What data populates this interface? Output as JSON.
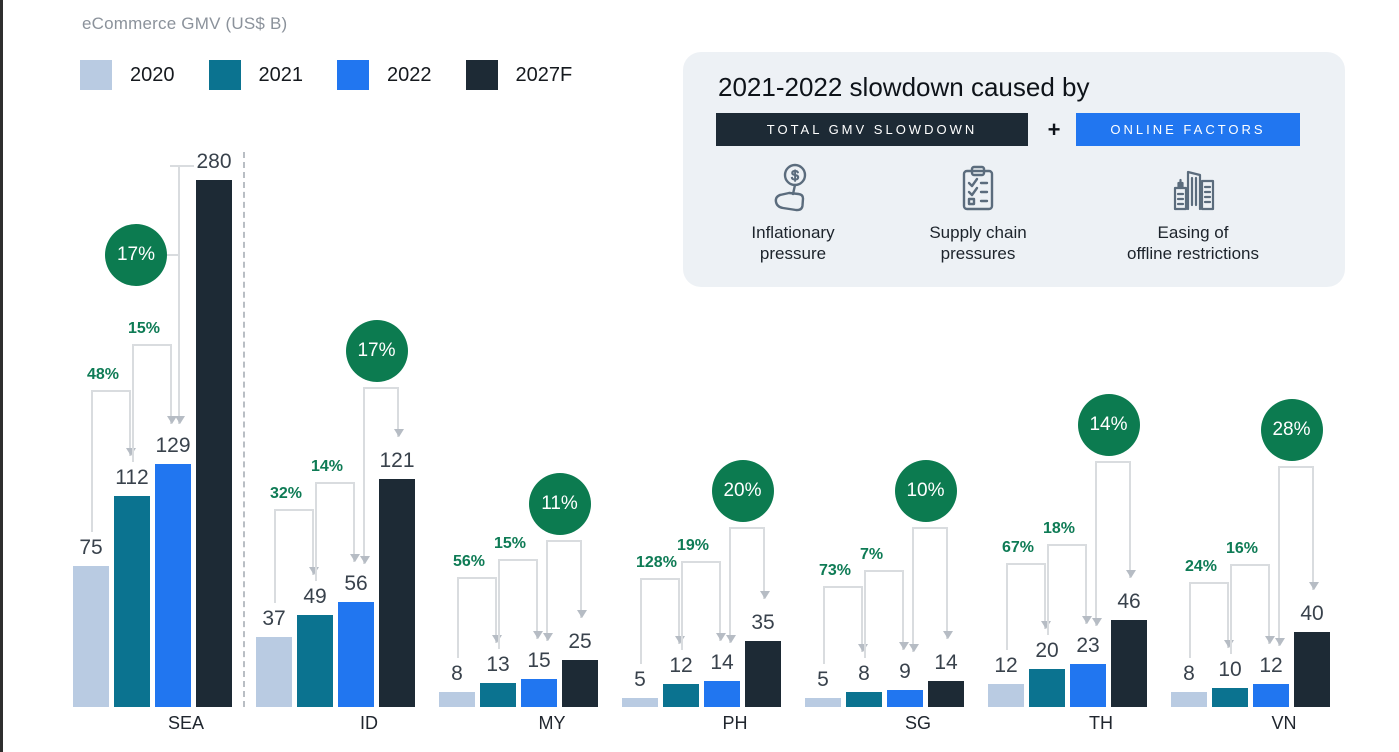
{
  "header": {
    "title": "eCommerce GMV (US$ B)",
    "legend": [
      {
        "label": "2020",
        "color": "#b9cbe2"
      },
      {
        "label": "2021",
        "color": "#0b7390"
      },
      {
        "label": "2022",
        "color": "#2176f0"
      },
      {
        "label": "2027F",
        "color": "#1d2a35"
      }
    ]
  },
  "callout": {
    "title": "2021-2022 slowdown caused by",
    "badge_dark": {
      "label": "TOTAL GMV SLOWDOWN",
      "color": "#1d2a35"
    },
    "plus": "+",
    "badge_blue": {
      "label": "ONLINE FACTORS",
      "color": "#2176f0"
    },
    "factors": [
      {
        "icon": "money-hand-icon",
        "lines": [
          "Inflationary",
          "pressure"
        ]
      },
      {
        "icon": "checklist-clipboard-icon",
        "lines": [
          "Supply chain",
          "pressures"
        ]
      },
      {
        "icon": "city-buildings-icon",
        "lines": [
          "Easing of",
          "offline restrictions"
        ]
      }
    ]
  },
  "chart_data": {
    "type": "bar",
    "title": "eCommerce GMV (US$ B)",
    "unit": "US$ B",
    "series": [
      "2020",
      "2021",
      "2022",
      "2027F"
    ],
    "series_colors": [
      "#b9cbe2",
      "#0b7390",
      "#2176f0",
      "#1d2a35"
    ],
    "growth_label_color": "#0e7b55",
    "cagr_circle_color": "#0c7b50",
    "value_label_color": "#39424c",
    "groups": [
      {
        "label": "SEA",
        "values": [
          75,
          112,
          129,
          280
        ],
        "yoy_growth": [
          "48%",
          "15%"
        ],
        "cagr_2022_2027F": "17%"
      },
      {
        "label": "ID",
        "values": [
          37,
          49,
          56,
          121
        ],
        "yoy_growth": [
          "32%",
          "14%"
        ],
        "cagr_2022_2027F": "17%"
      },
      {
        "label": "MY",
        "values": [
          8,
          13,
          15,
          25
        ],
        "yoy_growth": [
          "56%",
          "15%"
        ],
        "cagr_2022_2027F": "11%"
      },
      {
        "label": "PH",
        "values": [
          5,
          12,
          14,
          35
        ],
        "yoy_growth": [
          "128%",
          "19%"
        ],
        "cagr_2022_2027F": "20%"
      },
      {
        "label": "SG",
        "values": [
          5,
          8,
          9,
          14
        ],
        "yoy_growth": [
          "73%",
          "7%"
        ],
        "cagr_2022_2027F": "10%"
      },
      {
        "label": "TH",
        "values": [
          12,
          20,
          23,
          46
        ],
        "yoy_growth": [
          "67%",
          "18%"
        ],
        "cagr_2022_2027F": "14%"
      },
      {
        "label": "VN",
        "values": [
          8,
          10,
          12,
          40
        ],
        "yoy_growth": [
          "24%",
          "16%"
        ],
        "cagr_2022_2027F": "28%"
      }
    ],
    "layout_hints": {
      "grid": false,
      "legend_position": "top-left",
      "baseline_axis_line": false
    }
  }
}
